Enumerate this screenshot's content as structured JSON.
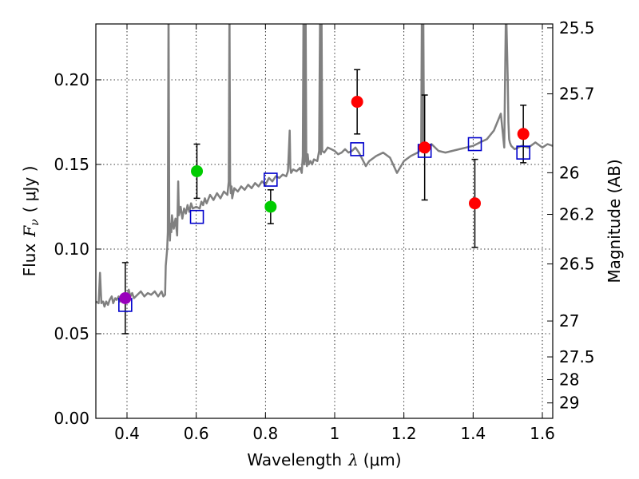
{
  "chart_data": {
    "type": "scatter",
    "xlabel": "Wavelength",
    "xlabel_symbol": "λ",
    "xlabel_unit": "(μm)",
    "ylabel": "Flux",
    "ylabel_symbol": "F",
    "ylabel_subscript": "ν",
    "ylabel_unit": "( μJy )",
    "y2label": "Magnitude (AB)",
    "xlim": [
      0.31,
      1.63
    ],
    "ylim": [
      0.0,
      0.233
    ],
    "grid": true,
    "x_ticks": [
      {
        "value": 0.4,
        "label": "0.4"
      },
      {
        "value": 0.6,
        "label": "0.6"
      },
      {
        "value": 0.8,
        "label": "0.8"
      },
      {
        "value": 1.0,
        "label": "1"
      },
      {
        "value": 1.2,
        "label": "1.2"
      },
      {
        "value": 1.4,
        "label": "1.4"
      },
      {
        "value": 1.6,
        "label": "1.6"
      }
    ],
    "y_ticks": [
      {
        "value": 0.0,
        "label": "0.00"
      },
      {
        "value": 0.05,
        "label": "0.05"
      },
      {
        "value": 0.1,
        "label": "0.10"
      },
      {
        "value": 0.15,
        "label": "0.15"
      },
      {
        "value": 0.2,
        "label": "0.20"
      }
    ],
    "magnitude_ticks": [
      {
        "flux": 0.2307,
        "label": "25.5"
      },
      {
        "flux": 0.1917,
        "label": "25.7"
      },
      {
        "flux": 0.1451,
        "label": "26"
      },
      {
        "flux": 0.1205,
        "label": "26.2"
      },
      {
        "flux": 0.0912,
        "label": "26.5"
      },
      {
        "flux": 0.0575,
        "label": "27"
      },
      {
        "flux": 0.0363,
        "label": "27.5"
      },
      {
        "flux": 0.0229,
        "label": "28"
      },
      {
        "flux": 0.0091,
        "label": "29"
      }
    ],
    "observed_photometry": [
      {
        "x": 0.395,
        "y": 0.071,
        "err": 0.021,
        "color": "#9900bb"
      },
      {
        "x": 0.602,
        "y": 0.146,
        "err": 0.016,
        "color": "#00cc00"
      },
      {
        "x": 0.815,
        "y": 0.125,
        "err": 0.01,
        "color": "#00cc00"
      },
      {
        "x": 1.065,
        "y": 0.187,
        "err": 0.019,
        "color": "#ff0000"
      },
      {
        "x": 1.26,
        "y": 0.16,
        "err": 0.031,
        "color": "#ff0000"
      },
      {
        "x": 1.405,
        "y": 0.127,
        "err": 0.026,
        "color": "#ff0000"
      },
      {
        "x": 1.545,
        "y": 0.168,
        "err": 0.017,
        "color": "#ff0000"
      }
    ],
    "model_photometry": {
      "color": "#0000cc",
      "points": [
        {
          "x": 0.395,
          "y": 0.067
        },
        {
          "x": 0.602,
          "y": 0.119
        },
        {
          "x": 0.815,
          "y": 0.141
        },
        {
          "x": 1.065,
          "y": 0.159
        },
        {
          "x": 1.26,
          "y": 0.158
        },
        {
          "x": 1.405,
          "y": 0.162
        },
        {
          "x": 1.545,
          "y": 0.157
        }
      ]
    },
    "model_spectrum": {
      "color": "#808080",
      "x": [
        0.31,
        0.318,
        0.322,
        0.326,
        0.328,
        0.331,
        0.335,
        0.34,
        0.345,
        0.35,
        0.356,
        0.36,
        0.366,
        0.37,
        0.376,
        0.38,
        0.386,
        0.39,
        0.395,
        0.4,
        0.405,
        0.41,
        0.415,
        0.42,
        0.43,
        0.44,
        0.45,
        0.46,
        0.47,
        0.48,
        0.49,
        0.5,
        0.505,
        0.51,
        0.512,
        0.516,
        0.518,
        0.52,
        0.522,
        0.524,
        0.526,
        0.528,
        0.53,
        0.535,
        0.54,
        0.545,
        0.548,
        0.55,
        0.555,
        0.56,
        0.565,
        0.57,
        0.575,
        0.58,
        0.585,
        0.59,
        0.6,
        0.61,
        0.615,
        0.62,
        0.625,
        0.63,
        0.64,
        0.65,
        0.66,
        0.67,
        0.68,
        0.69,
        0.694,
        0.696,
        0.698,
        0.7,
        0.702,
        0.704,
        0.71,
        0.72,
        0.73,
        0.74,
        0.75,
        0.76,
        0.77,
        0.78,
        0.79,
        0.8,
        0.81,
        0.82,
        0.83,
        0.84,
        0.85,
        0.86,
        0.865,
        0.868,
        0.87,
        0.872,
        0.874,
        0.88,
        0.89,
        0.9,
        0.905,
        0.908,
        0.91,
        0.912,
        0.914,
        0.916,
        0.918,
        0.92,
        0.922,
        0.925,
        0.93,
        0.935,
        0.94,
        0.95,
        0.955,
        0.958,
        0.96,
        0.962,
        0.964,
        0.97,
        0.98,
        0.99,
        1.0,
        1.01,
        1.02,
        1.03,
        1.04,
        1.05,
        1.06,
        1.07,
        1.08,
        1.09,
        1.1,
        1.12,
        1.14,
        1.16,
        1.18,
        1.2,
        1.22,
        1.24,
        1.245,
        1.25,
        1.252,
        1.254,
        1.256,
        1.258,
        1.26,
        1.262,
        1.264,
        1.266,
        1.27,
        1.28,
        1.3,
        1.32,
        1.34,
        1.36,
        1.38,
        1.4,
        1.42,
        1.44,
        1.46,
        1.48,
        1.49,
        1.495,
        1.5,
        1.502,
        1.504,
        1.506,
        1.508,
        1.51,
        1.52,
        1.54,
        1.56,
        1.58,
        1.6,
        1.615,
        1.63
      ],
      "y": [
        0.069,
        0.068,
        0.086,
        0.068,
        0.069,
        0.069,
        0.066,
        0.069,
        0.067,
        0.07,
        0.072,
        0.068,
        0.071,
        0.07,
        0.072,
        0.069,
        0.072,
        0.07,
        0.073,
        0.071,
        0.076,
        0.072,
        0.074,
        0.071,
        0.073,
        0.075,
        0.072,
        0.074,
        0.073,
        0.075,
        0.072,
        0.075,
        0.072,
        0.073,
        0.09,
        0.1,
        0.11,
        0.245,
        0.12,
        0.105,
        0.115,
        0.11,
        0.12,
        0.112,
        0.118,
        0.108,
        0.14,
        0.12,
        0.125,
        0.118,
        0.124,
        0.121,
        0.126,
        0.122,
        0.127,
        0.124,
        0.125,
        0.124,
        0.128,
        0.126,
        0.13,
        0.127,
        0.132,
        0.129,
        0.133,
        0.13,
        0.134,
        0.132,
        0.14,
        0.245,
        0.14,
        0.133,
        0.137,
        0.13,
        0.136,
        0.134,
        0.137,
        0.135,
        0.138,
        0.136,
        0.139,
        0.137,
        0.14,
        0.138,
        0.142,
        0.14,
        0.143,
        0.142,
        0.144,
        0.143,
        0.146,
        0.16,
        0.17,
        0.148,
        0.145,
        0.147,
        0.146,
        0.148,
        0.145,
        0.155,
        0.245,
        0.15,
        0.158,
        0.245,
        0.152,
        0.149,
        0.156,
        0.15,
        0.152,
        0.15,
        0.153,
        0.152,
        0.158,
        0.245,
        0.156,
        0.245,
        0.158,
        0.157,
        0.16,
        0.159,
        0.158,
        0.156,
        0.157,
        0.159,
        0.157,
        0.158,
        0.16,
        0.157,
        0.153,
        0.149,
        0.152,
        0.155,
        0.157,
        0.154,
        0.145,
        0.152,
        0.155,
        0.157,
        0.158,
        0.16,
        0.245,
        0.162,
        0.245,
        0.162,
        0.16,
        0.158,
        0.159,
        0.157,
        0.159,
        0.162,
        0.158,
        0.157,
        0.158,
        0.159,
        0.16,
        0.161,
        0.163,
        0.165,
        0.17,
        0.18,
        0.16,
        0.245,
        0.2,
        0.175,
        0.165,
        0.163,
        0.162,
        0.161,
        0.159,
        0.161,
        0.16,
        0.163,
        0.16,
        0.162,
        0.161
      ]
    }
  }
}
